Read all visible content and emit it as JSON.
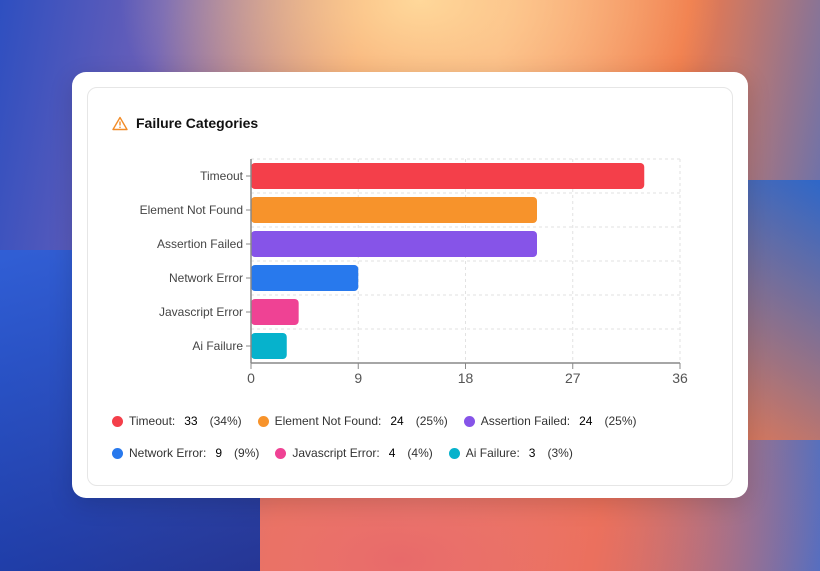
{
  "card": {
    "title": "Failure Categories",
    "icon": "warning-triangle-icon",
    "icon_color": "#f28c28"
  },
  "chart_data": {
    "type": "bar",
    "orientation": "horizontal",
    "categories": [
      "Timeout",
      "Element Not Found",
      "Assertion Failed",
      "Network Error",
      "Javascript Error",
      "Ai Failure"
    ],
    "values": [
      33,
      24,
      24,
      9,
      4,
      3
    ],
    "colors": [
      "#f43f4a",
      "#f7932b",
      "#8654e8",
      "#2879ed",
      "#ef4294",
      "#06b2cc"
    ],
    "xlim": [
      0,
      36
    ],
    "xticks": [
      "0",
      "9",
      "18",
      "27",
      "36"
    ],
    "grid": true,
    "legend_placement": "bottom"
  },
  "legend": [
    {
      "label": "Timeout:",
      "value": "33",
      "pct": "(34%)"
    },
    {
      "label": "Element Not Found:",
      "value": "24",
      "pct": "(25%)"
    },
    {
      "label": "Assertion Failed:",
      "value": "24",
      "pct": "(25%)"
    },
    {
      "label": "Network Error:",
      "value": "9",
      "pct": "(9%)"
    },
    {
      "label": "Javascript Error:",
      "value": "4",
      "pct": "(4%)"
    },
    {
      "label": "Ai Failure:",
      "value": "3",
      "pct": "(3%)"
    }
  ]
}
